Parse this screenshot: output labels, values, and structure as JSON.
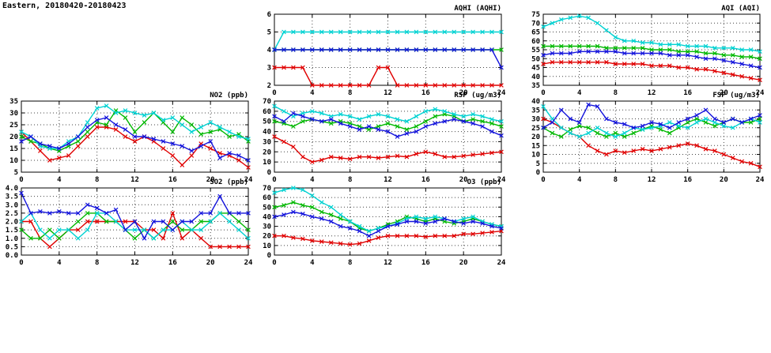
{
  "page_title": "Eastern, 20180420-20180423",
  "colors": {
    "red": "#e00000",
    "green": "#00b800",
    "cyan": "#00d2d2",
    "blue": "#1414dc"
  },
  "chart_data": [
    {
      "id": "aqhi",
      "type": "line",
      "title": "AQHI (AQHI)",
      "x_start": 0,
      "x_step": 1,
      "x": {
        "min": 0,
        "max": 24,
        "ticks": [
          0,
          4,
          8,
          12,
          16,
          20,
          24
        ]
      },
      "y": {
        "min": 2,
        "max": 6,
        "ticks": [
          2,
          3,
          4,
          5,
          6
        ],
        "labels": [
          "2",
          "3",
          "4",
          "5",
          "6"
        ]
      },
      "grid": true,
      "legend": "none",
      "series": [
        {
          "name": "red",
          "color": "#e00000",
          "values": [
            3,
            3,
            3,
            3,
            2,
            2,
            2,
            2,
            2,
            2,
            2,
            3,
            3,
            2,
            2,
            2,
            2,
            2,
            2,
            2,
            2,
            2,
            2,
            2,
            2
          ]
        },
        {
          "name": "green",
          "color": "#00b800",
          "values": [
            4,
            4,
            4,
            4,
            4,
            4,
            4,
            4,
            4,
            4,
            4,
            4,
            4,
            4,
            4,
            4,
            4,
            4,
            4,
            4,
            4,
            4,
            4,
            4,
            4
          ]
        },
        {
          "name": "cyan",
          "color": "#00d2d2",
          "values": [
            4,
            5,
            5,
            5,
            5,
            5,
            5,
            5,
            5,
            5,
            5,
            5,
            5,
            5,
            5,
            5,
            5,
            5,
            5,
            5,
            5,
            5,
            5,
            5,
            5
          ]
        },
        {
          "name": "blue",
          "color": "#1414dc",
          "values": [
            4,
            4,
            4,
            4,
            4,
            4,
            4,
            4,
            4,
            4,
            4,
            4,
            4,
            4,
            4,
            4,
            4,
            4,
            4,
            4,
            4,
            4,
            4,
            4,
            3
          ]
        }
      ]
    },
    {
      "id": "aqi",
      "type": "line",
      "title": "AQI (AQI)",
      "x_start": 0,
      "x_step": 1,
      "x": {
        "min": 0,
        "max": 24,
        "ticks": [
          0,
          4,
          8,
          12,
          16,
          20,
          24
        ]
      },
      "y": {
        "min": 35,
        "max": 75,
        "ticks": [
          35,
          40,
          45,
          50,
          55,
          60,
          65,
          70,
          75
        ],
        "labels": [
          "35",
          "40",
          "45",
          "50",
          "55",
          "60",
          "65",
          "70",
          "75"
        ]
      },
      "grid": true,
      "legend": "none",
      "series": [
        {
          "name": "red",
          "color": "#e00000",
          "values": [
            47,
            48,
            48,
            48,
            48,
            48,
            48,
            48,
            47,
            47,
            47,
            47,
            46,
            46,
            46,
            45,
            45,
            44,
            44,
            43,
            42,
            41,
            40,
            39,
            38
          ]
        },
        {
          "name": "green",
          "color": "#00b800",
          "values": [
            57,
            57,
            57,
            57,
            57,
            57,
            57,
            56,
            56,
            56,
            56,
            56,
            55,
            55,
            55,
            54,
            54,
            54,
            53,
            53,
            52,
            52,
            51,
            51,
            50
          ]
        },
        {
          "name": "cyan",
          "color": "#00d2d2",
          "values": [
            68,
            70,
            72,
            73,
            74,
            73,
            70,
            66,
            62,
            60,
            60,
            59,
            59,
            58,
            58,
            58,
            57,
            57,
            57,
            56,
            56,
            56,
            55,
            55,
            54
          ]
        },
        {
          "name": "blue",
          "color": "#1414dc",
          "values": [
            52,
            53,
            53,
            53,
            54,
            54,
            54,
            54,
            54,
            53,
            53,
            53,
            53,
            53,
            52,
            52,
            52,
            51,
            50,
            50,
            49,
            48,
            47,
            46,
            45
          ]
        }
      ]
    },
    {
      "id": "no2",
      "type": "line",
      "title": "NO2 (ppb)",
      "x_start": 0,
      "x_step": 1,
      "x": {
        "min": 0,
        "max": 24,
        "ticks": [
          0,
          4,
          8,
          12,
          16,
          20,
          24
        ]
      },
      "y": {
        "min": 5,
        "max": 35,
        "ticks": [
          5,
          10,
          15,
          20,
          25,
          30,
          35
        ],
        "labels": [
          "5",
          "10",
          "15",
          "20",
          "25",
          "30",
          "35"
        ]
      },
      "grid": true,
      "legend": "none",
      "series": [
        {
          "name": "red",
          "color": "#e00000",
          "values": [
            22,
            18,
            14,
            10,
            11,
            12,
            16,
            20,
            24,
            24,
            23,
            20,
            18,
            20,
            18,
            15,
            12,
            8,
            12,
            17,
            15,
            13,
            12,
            10,
            7
          ]
        },
        {
          "name": "green",
          "color": "#00b800",
          "values": [
            20,
            18,
            17,
            15,
            14,
            16,
            18,
            22,
            26,
            25,
            31,
            28,
            22,
            26,
            30,
            26,
            22,
            28,
            25,
            21,
            22,
            23,
            20,
            21,
            18
          ]
        },
        {
          "name": "cyan",
          "color": "#00d2d2",
          "values": [
            22,
            20,
            16,
            15,
            15,
            18,
            20,
            26,
            32,
            33,
            30,
            31,
            30,
            29,
            30,
            27,
            28,
            25,
            22,
            24,
            26,
            24,
            22,
            20,
            19
          ]
        },
        {
          "name": "blue",
          "color": "#1414dc",
          "values": [
            18,
            20,
            17,
            16,
            15,
            17,
            20,
            24,
            27,
            28,
            25,
            23,
            20,
            20,
            19,
            18,
            17,
            16,
            14,
            16,
            18,
            11,
            13,
            12,
            10
          ]
        }
      ]
    },
    {
      "id": "rsp",
      "type": "line",
      "title": "RSP (ug/m3)",
      "x_start": 0,
      "x_step": 1,
      "x": {
        "min": 0,
        "max": 24,
        "ticks": [
          0,
          4,
          8,
          12,
          16,
          20,
          24
        ]
      },
      "y": {
        "min": 0,
        "max": 70,
        "ticks": [
          0,
          10,
          20,
          30,
          40,
          50,
          60,
          70
        ],
        "labels": [
          "0",
          "10",
          "20",
          "30",
          "40",
          "50",
          "60",
          "70"
        ]
      },
      "grid": true,
      "legend": "none",
      "series": [
        {
          "name": "red",
          "color": "#e00000",
          "values": [
            35,
            30,
            25,
            15,
            10,
            12,
            15,
            14,
            13,
            15,
            15,
            14,
            15,
            16,
            15,
            18,
            20,
            18,
            15,
            15,
            16,
            17,
            18,
            19,
            20
          ]
        },
        {
          "name": "green",
          "color": "#00b800",
          "values": [
            50,
            48,
            45,
            50,
            52,
            50,
            48,
            50,
            48,
            45,
            42,
            45,
            48,
            45,
            42,
            45,
            50,
            55,
            57,
            55,
            50,
            52,
            50,
            48,
            45
          ]
        },
        {
          "name": "cyan",
          "color": "#00d2d2",
          "values": [
            65,
            60,
            55,
            58,
            60,
            58,
            55,
            57,
            55,
            52,
            55,
            57,
            55,
            52,
            50,
            55,
            60,
            62,
            60,
            57,
            55,
            57,
            55,
            52,
            50
          ]
        },
        {
          "name": "blue",
          "color": "#1414dc",
          "values": [
            55,
            50,
            58,
            55,
            52,
            50,
            52,
            48,
            45,
            42,
            45,
            42,
            40,
            35,
            38,
            40,
            45,
            48,
            50,
            52,
            50,
            48,
            45,
            40,
            36
          ]
        }
      ]
    },
    {
      "id": "fsp",
      "type": "line",
      "title": "FSP (ug/m3)",
      "x_start": 0,
      "x_step": 1,
      "x": {
        "min": 0,
        "max": 24,
        "ticks": [
          0,
          4,
          8,
          12,
          16,
          20,
          24
        ]
      },
      "y": {
        "min": 0,
        "max": 40,
        "ticks": [
          0,
          5,
          10,
          15,
          20,
          25,
          30,
          35,
          40
        ],
        "labels": [
          "0",
          "5",
          "10",
          "15",
          "20",
          "25",
          "30",
          "35",
          "40"
        ]
      },
      "grid": true,
      "legend": "none",
      "series": [
        {
          "name": "red",
          "color": "#e00000",
          "values": [
            30,
            28,
            25,
            22,
            20,
            15,
            12,
            10,
            12,
            11,
            12,
            13,
            12,
            13,
            14,
            15,
            16,
            15,
            13,
            12,
            10,
            8,
            6,
            5,
            3
          ]
        },
        {
          "name": "green",
          "color": "#00b800",
          "values": [
            25,
            22,
            20,
            24,
            26,
            25,
            22,
            20,
            22,
            20,
            22,
            24,
            26,
            24,
            22,
            25,
            28,
            30,
            28,
            26,
            28,
            30,
            28,
            28,
            30
          ]
        },
        {
          "name": "cyan",
          "color": "#00d2d2",
          "values": [
            37,
            30,
            25,
            22,
            20,
            22,
            25,
            22,
            20,
            22,
            25,
            24,
            25,
            26,
            28,
            26,
            25,
            28,
            30,
            28,
            26,
            25,
            28,
            30,
            28
          ]
        },
        {
          "name": "blue",
          "color": "#1414dc",
          "values": [
            25,
            28,
            35,
            30,
            28,
            38,
            37,
            30,
            28,
            27,
            25,
            26,
            28,
            27,
            25,
            28,
            30,
            32,
            35,
            30,
            28,
            30,
            28,
            30,
            32
          ]
        }
      ]
    },
    {
      "id": "so2",
      "type": "line",
      "title": "SO2 (ppb)",
      "x_start": 0,
      "x_step": 1,
      "x": {
        "min": 0,
        "max": 24,
        "ticks": [
          0,
          4,
          8,
          12,
          16,
          20,
          24
        ]
      },
      "y": {
        "min": 0,
        "max": 4,
        "ticks": [
          0,
          0.5,
          1,
          1.5,
          2,
          2.5,
          3,
          3.5,
          4
        ],
        "labels": [
          "0.0",
          "0.5",
          "1.0",
          "1.5",
          "2.0",
          "2.5",
          "3.0",
          "3.5",
          "4.0"
        ]
      },
      "grid": true,
      "legend": "none",
      "series": [
        {
          "name": "red",
          "color": "#e00000",
          "values": [
            2.0,
            2.0,
            1.0,
            0.5,
            1.0,
            1.5,
            1.5,
            2.0,
            2.0,
            2.0,
            2.0,
            2.0,
            2.0,
            1.5,
            1.5,
            1.0,
            2.5,
            1.0,
            1.5,
            1.0,
            0.5,
            0.5,
            0.5,
            0.5,
            0.5
          ]
        },
        {
          "name": "green",
          "color": "#00b800",
          "values": [
            1.5,
            1.0,
            1.0,
            1.5,
            1.0,
            1.5,
            2.0,
            2.5,
            2.5,
            2.0,
            2.0,
            1.5,
            1.0,
            1.5,
            1.0,
            1.5,
            2.0,
            1.5,
            1.5,
            2.0,
            2.0,
            2.5,
            2.5,
            2.0,
            1.5
          ]
        },
        {
          "name": "cyan",
          "color": "#00d2d2",
          "values": [
            2.0,
            2.5,
            1.5,
            1.0,
            1.5,
            1.5,
            1.0,
            1.5,
            2.5,
            2.5,
            2.0,
            1.5,
            1.5,
            1.5,
            1.0,
            1.5,
            1.5,
            2.0,
            1.5,
            1.5,
            2.0,
            2.5,
            2.0,
            1.5,
            1.0
          ]
        },
        {
          "name": "blue",
          "color": "#1414dc",
          "values": [
            3.7,
            2.5,
            2.6,
            2.5,
            2.6,
            2.5,
            2.5,
            3.0,
            2.8,
            2.5,
            2.7,
            1.5,
            2.0,
            1.0,
            2.0,
            2.0,
            1.5,
            2.0,
            2.0,
            2.5,
            2.5,
            3.5,
            2.5,
            2.5,
            2.5
          ]
        }
      ]
    },
    {
      "id": "o3",
      "type": "line",
      "title": "O3 (ppb)",
      "x_start": 0,
      "x_step": 1,
      "x": {
        "min": 0,
        "max": 24,
        "ticks": [
          0,
          4,
          8,
          12,
          16,
          20,
          24
        ]
      },
      "y": {
        "min": 0,
        "max": 70,
        "ticks": [
          0,
          10,
          20,
          30,
          40,
          50,
          60,
          70
        ],
        "labels": [
          "0",
          "10",
          "20",
          "30",
          "40",
          "50",
          "60",
          "70"
        ]
      },
      "grid": true,
      "legend": "none",
      "series": [
        {
          "name": "red",
          "color": "#e00000",
          "values": [
            20,
            20,
            18,
            17,
            15,
            14,
            13,
            12,
            11,
            12,
            15,
            18,
            20,
            20,
            20,
            20,
            19,
            20,
            20,
            20,
            22,
            22,
            23,
            24,
            25
          ]
        },
        {
          "name": "green",
          "color": "#00b800",
          "values": [
            50,
            52,
            55,
            52,
            50,
            45,
            42,
            38,
            35,
            28,
            25,
            28,
            32,
            35,
            40,
            38,
            35,
            38,
            35,
            33,
            35,
            38,
            35,
            32,
            30
          ]
        },
        {
          "name": "cyan",
          "color": "#00d2d2",
          "values": [
            65,
            68,
            70,
            68,
            62,
            55,
            50,
            42,
            35,
            30,
            25,
            28,
            30,
            33,
            38,
            40,
            38,
            40,
            38,
            35,
            38,
            40,
            35,
            32,
            30
          ]
        },
        {
          "name": "blue",
          "color": "#1414dc",
          "values": [
            40,
            42,
            45,
            43,
            40,
            38,
            35,
            30,
            28,
            25,
            20,
            25,
            30,
            32,
            35,
            35,
            33,
            35,
            38,
            35,
            33,
            35,
            33,
            30,
            28
          ]
        }
      ]
    }
  ]
}
